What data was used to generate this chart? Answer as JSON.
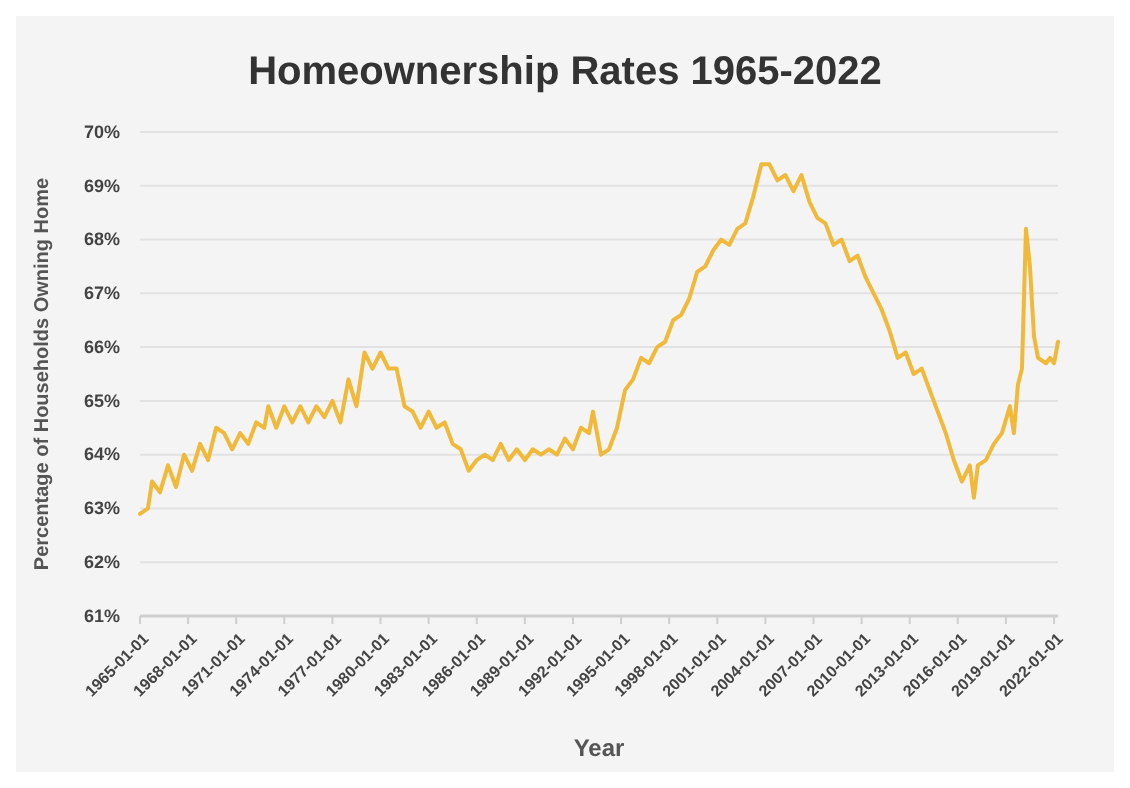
{
  "chart_data": {
    "type": "line",
    "title": "Homeownership Rates 1965-2022",
    "xlabel": "Year",
    "ylabel": "Percentage of Households Owning Home",
    "x": [
      "1965-01-01",
      "1965-07-01",
      "1965-10-01",
      "1966-04-01",
      "1966-10-01",
      "1967-04-01",
      "1967-10-01",
      "1968-04-01",
      "1968-10-01",
      "1969-04-01",
      "1969-10-01",
      "1970-04-01",
      "1970-10-01",
      "1971-04-01",
      "1971-10-01",
      "1972-04-01",
      "1972-10-01",
      "1973-01-01",
      "1973-07-01",
      "1974-01-01",
      "1974-07-01",
      "1975-01-01",
      "1975-07-01",
      "1976-01-01",
      "1976-07-01",
      "1977-01-01",
      "1977-07-01",
      "1978-01-01",
      "1978-07-01",
      "1979-01-01",
      "1979-07-01",
      "1980-01-01",
      "1980-07-01",
      "1981-01-01",
      "1981-07-01",
      "1982-01-01",
      "1982-07-01",
      "1983-01-01",
      "1983-07-01",
      "1984-01-01",
      "1984-07-01",
      "1985-01-01",
      "1985-07-01",
      "1986-01-01",
      "1986-07-01",
      "1987-01-01",
      "1987-07-01",
      "1988-01-01",
      "1988-07-01",
      "1989-01-01",
      "1989-07-01",
      "1990-01-01",
      "1990-07-01",
      "1991-01-01",
      "1991-07-01",
      "1992-01-01",
      "1992-07-01",
      "1993-01-01",
      "1993-04-01",
      "1993-10-01",
      "1994-04-01",
      "1994-10-01",
      "1995-04-01",
      "1995-10-01",
      "1996-04-01",
      "1996-10-01",
      "1997-04-01",
      "1997-10-01",
      "1998-04-01",
      "1998-10-01",
      "1999-04-01",
      "1999-10-01",
      "2000-04-01",
      "2000-10-01",
      "2001-04-01",
      "2001-10-01",
      "2002-04-01",
      "2002-10-01",
      "2003-04-01",
      "2003-10-01",
      "2004-04-01",
      "2004-10-01",
      "2005-04-01",
      "2005-10-01",
      "2006-04-01",
      "2006-10-01",
      "2007-04-01",
      "2007-10-01",
      "2008-04-01",
      "2008-10-01",
      "2009-04-01",
      "2009-10-01",
      "2010-04-01",
      "2010-10-01",
      "2011-04-01",
      "2011-10-01",
      "2012-04-01",
      "2012-10-01",
      "2013-04-01",
      "2013-10-01",
      "2014-04-01",
      "2014-10-01",
      "2015-04-01",
      "2015-10-01",
      "2016-04-01",
      "2016-10-01",
      "2017-01-01",
      "2017-04-01",
      "2017-10-01",
      "2018-04-01",
      "2018-10-01",
      "2019-04-01",
      "2019-07-01",
      "2019-10-01",
      "2020-01-01",
      "2020-04-01",
      "2020-07-01",
      "2020-10-01",
      "2021-01-01",
      "2021-07-01",
      "2021-10-01",
      "2022-01-01",
      "2022-04-01"
    ],
    "series": [
      {
        "color": "#f0b93a",
        "values": [
          62.9,
          63.0,
          63.5,
          63.3,
          63.8,
          63.4,
          64.0,
          63.7,
          64.2,
          63.9,
          64.5,
          64.4,
          64.1,
          64.4,
          64.2,
          64.6,
          64.5,
          64.9,
          64.5,
          64.9,
          64.6,
          64.9,
          64.6,
          64.9,
          64.7,
          65.0,
          64.6,
          65.4,
          64.9,
          65.9,
          65.6,
          65.9,
          65.6,
          65.6,
          64.9,
          64.8,
          64.5,
          64.8,
          64.5,
          64.6,
          64.2,
          64.1,
          63.7,
          63.9,
          64.0,
          63.9,
          64.2,
          63.9,
          64.1,
          63.9,
          64.1,
          64.0,
          64.1,
          64.0,
          64.3,
          64.1,
          64.5,
          64.4,
          64.8,
          64.0,
          64.1,
          64.5,
          65.2,
          65.4,
          65.8,
          65.7,
          66.0,
          66.1,
          66.5,
          66.6,
          66.9,
          67.4,
          67.5,
          67.8,
          68.0,
          67.9,
          68.2,
          68.3,
          68.8,
          69.4,
          69.4,
          69.1,
          69.2,
          68.9,
          69.2,
          68.7,
          68.4,
          68.3,
          67.9,
          68.0,
          67.6,
          67.7,
          67.3,
          67.0,
          66.7,
          66.3,
          65.8,
          65.9,
          65.5,
          65.6,
          65.2,
          64.8,
          64.4,
          63.9,
          63.5,
          63.8,
          63.2,
          63.8,
          63.9,
          64.2,
          64.4,
          64.9,
          64.4,
          65.3,
          65.6,
          68.2,
          67.5,
          66.2,
          65.8,
          65.7,
          65.8,
          65.7,
          66.1
        ]
      }
    ],
    "xlim": [
      "1965-01-01",
      "2022-04-01"
    ],
    "xticks": [
      {
        "value": "1965-01-01",
        "label": "1965-01-01"
      },
      {
        "value": "1968-01-01",
        "label": "1968-01-01"
      },
      {
        "value": "1971-01-01",
        "label": "1971-01-01"
      },
      {
        "value": "1974-01-01",
        "label": "1974-01-01"
      },
      {
        "value": "1977-01-01",
        "label": "1977-01-01"
      },
      {
        "value": "1980-01-01",
        "label": "1980-01-01"
      },
      {
        "value": "1983-01-01",
        "label": "1983-01-01"
      },
      {
        "value": "1986-01-01",
        "label": "1986-01-01"
      },
      {
        "value": "1989-01-01",
        "label": "1989-01-01"
      },
      {
        "value": "1992-01-01",
        "label": "1992-01-01"
      },
      {
        "value": "1995-01-01",
        "label": "1995-01-01"
      },
      {
        "value": "1998-01-01",
        "label": "1998-01-01"
      },
      {
        "value": "2001-01-01",
        "label": "2001-01-01"
      },
      {
        "value": "2004-01-01",
        "label": "2004-01-01"
      },
      {
        "value": "2007-01-01",
        "label": "2007-01-01"
      },
      {
        "value": "2010-01-01",
        "label": "2010-01-01"
      },
      {
        "value": "2013-01-01",
        "label": "2013-01-01"
      },
      {
        "value": "2016-01-01",
        "label": "2016-01-01"
      },
      {
        "value": "2019-01-01",
        "label": "2019-01-01"
      },
      {
        "value": "2022-01-01",
        "label": "2022-01-01"
      }
    ],
    "ylim": [
      61,
      70
    ],
    "yticks": [
      {
        "value": 61,
        "label": "61%"
      },
      {
        "value": 62,
        "label": "62%"
      },
      {
        "value": 63,
        "label": "63%"
      },
      {
        "value": 64,
        "label": "64%"
      },
      {
        "value": 65,
        "label": "65%"
      },
      {
        "value": 66,
        "label": "66%"
      },
      {
        "value": 67,
        "label": "67%"
      },
      {
        "value": 68,
        "label": "68%"
      },
      {
        "value": 69,
        "label": "69%"
      },
      {
        "value": 70,
        "label": "70%"
      }
    ],
    "grid": "y",
    "marker": "none",
    "line_style": "solid"
  }
}
